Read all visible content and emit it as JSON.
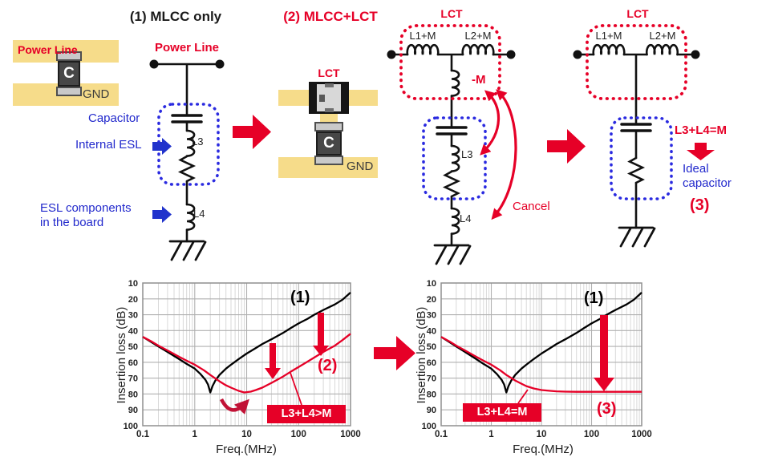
{
  "colors": {
    "red": "#e60027",
    "dark_red": "#c11236",
    "blue": "#2128cc",
    "yellow": "#f6dc8a",
    "curve_black": "#000000"
  },
  "sections": {
    "s1": {
      "title": "(1) MLCC only",
      "pcb": {
        "power_line": "Power Line",
        "cap": "C",
        "gnd": "GND"
      },
      "circuit": {
        "power_line": "Power Line",
        "l3": "L3",
        "l4": "L4"
      },
      "labels": {
        "capacitor": "Capacitor",
        "internal_esl": "Internal ESL",
        "esl_line1": "ESL components",
        "esl_line2": "in the board"
      }
    },
    "s2": {
      "title": "(2) MLCC+LCT",
      "pcb": {
        "lct": "LCT",
        "cap": "C",
        "gnd": "GND"
      },
      "circuit": {
        "lct": "LCT",
        "l1": "L1+M",
        "l2": "L2+M",
        "minus_m": "-M",
        "l3": "L3",
        "l4": "L4",
        "cancel": "Cancel"
      }
    },
    "s3": {
      "circuit": {
        "lct": "LCT",
        "l1": "L1+M",
        "l2": "L2+M"
      },
      "labels": {
        "condition": "L3+L4=M",
        "ideal_line1": "Ideal",
        "ideal_line2": "capacitor",
        "number": "(3)"
      }
    }
  },
  "chart_data": [
    {
      "type": "line",
      "title": "",
      "xlabel": "Freq.(MHz)",
      "ylabel": "Insertion loss (dB)",
      "xscale": "log",
      "xlim": [
        0.1,
        1000
      ],
      "ylim": [
        10,
        100
      ],
      "y_axis_direction": "loss increases downward (10 dB at top, 100 dB at bottom)",
      "x_ticks": [
        "0.1",
        "1",
        "10",
        "100",
        "1000"
      ],
      "y_ticks": [
        10,
        20,
        30,
        40,
        50,
        60,
        70,
        80,
        90,
        100
      ],
      "grid": true,
      "legend_position": "inline-labels",
      "series": [
        {
          "name": "(1)",
          "color": "#000000",
          "points": [
            [
              0.1,
              44
            ],
            [
              0.15,
              47.5
            ],
            [
              0.2,
              50
            ],
            [
              0.3,
              53.5
            ],
            [
              0.5,
              58
            ],
            [
              0.7,
              61
            ],
            [
              1,
              64
            ],
            [
              1.3,
              67.5
            ],
            [
              1.6,
              71
            ],
            [
              1.8,
              74
            ],
            [
              2,
              79
            ],
            [
              2.2,
              75
            ],
            [
              2.5,
              71.5
            ],
            [
              3,
              68
            ],
            [
              4,
              64
            ],
            [
              5,
              61.5
            ],
            [
              7,
              58
            ],
            [
              10,
              54.5
            ],
            [
              15,
              51
            ],
            [
              20,
              48.5
            ],
            [
              30,
              45.5
            ],
            [
              50,
              41.5
            ],
            [
              70,
              38.5
            ],
            [
              100,
              35.5
            ],
            [
              150,
              32.5
            ],
            [
              200,
              30
            ],
            [
              300,
              27
            ],
            [
              500,
              23.5
            ],
            [
              700,
              20.5
            ],
            [
              1000,
              16
            ]
          ]
        },
        {
          "name": "(2)",
          "color": "#e60027",
          "points": [
            [
              0.1,
              44
            ],
            [
              0.15,
              47
            ],
            [
              0.2,
              49.5
            ],
            [
              0.3,
              52.5
            ],
            [
              0.5,
              56.5
            ],
            [
              0.7,
              59
            ],
            [
              1,
              61.5
            ],
            [
              1.5,
              65
            ],
            [
              2,
              68
            ],
            [
              3,
              72
            ],
            [
              4,
              74.5
            ],
            [
              5,
              76
            ],
            [
              7,
              78
            ],
            [
              9,
              79
            ],
            [
              12,
              78.5
            ],
            [
              15,
              77.5
            ],
            [
              20,
              76
            ],
            [
              30,
              73
            ],
            [
              50,
              69
            ],
            [
              70,
              66
            ],
            [
              100,
              63
            ],
            [
              150,
              59.5
            ],
            [
              200,
              57
            ],
            [
              300,
              53.5
            ],
            [
              500,
              49.5
            ],
            [
              700,
              46
            ],
            [
              1000,
              42
            ]
          ]
        }
      ],
      "annotations": {
        "box_label": "L3+L4>M"
      }
    },
    {
      "type": "line",
      "title": "",
      "xlabel": "Freq.(MHz)",
      "ylabel": "Insertion loss (dB)",
      "xscale": "log",
      "xlim": [
        0.1,
        1000
      ],
      "ylim": [
        10,
        100
      ],
      "y_axis_direction": "loss increases downward (10 dB at top, 100 dB at bottom)",
      "x_ticks": [
        "0.1",
        "1",
        "10",
        "100",
        "1000"
      ],
      "y_ticks": [
        10,
        20,
        30,
        40,
        50,
        60,
        70,
        80,
        90,
        100
      ],
      "grid": true,
      "legend_position": "inline-labels",
      "series": [
        {
          "name": "(1)",
          "color": "#000000",
          "points": [
            [
              0.1,
              44
            ],
            [
              0.15,
              47.5
            ],
            [
              0.2,
              50
            ],
            [
              0.3,
              53.5
            ],
            [
              0.5,
              58
            ],
            [
              0.7,
              61
            ],
            [
              1,
              64
            ],
            [
              1.3,
              67.5
            ],
            [
              1.6,
              71
            ],
            [
              1.8,
              74
            ],
            [
              2,
              79
            ],
            [
              2.2,
              75
            ],
            [
              2.5,
              71.5
            ],
            [
              3,
              68
            ],
            [
              4,
              64
            ],
            [
              5,
              61.5
            ],
            [
              7,
              58
            ],
            [
              10,
              54.5
            ],
            [
              15,
              51
            ],
            [
              20,
              48.5
            ],
            [
              30,
              45.5
            ],
            [
              50,
              41.5
            ],
            [
              70,
              38.5
            ],
            [
              100,
              35.5
            ],
            [
              150,
              32.5
            ],
            [
              200,
              30
            ],
            [
              300,
              27
            ],
            [
              500,
              23.5
            ],
            [
              700,
              20.5
            ],
            [
              1000,
              16
            ]
          ]
        },
        {
          "name": "(3)",
          "color": "#e60027",
          "points": [
            [
              0.1,
              44
            ],
            [
              0.15,
              47
            ],
            [
              0.2,
              49.5
            ],
            [
              0.3,
              52.5
            ],
            [
              0.5,
              56.5
            ],
            [
              0.7,
              59
            ],
            [
              1,
              61.5
            ],
            [
              1.5,
              65
            ],
            [
              2,
              68
            ],
            [
              3,
              71.5
            ],
            [
              4,
              73.5
            ],
            [
              5,
              75
            ],
            [
              7,
              76.5
            ],
            [
              10,
              77.5
            ],
            [
              15,
              78
            ],
            [
              20,
              78.3
            ],
            [
              30,
              78.5
            ],
            [
              50,
              78.6
            ],
            [
              100,
              78.6
            ],
            [
              200,
              78.6
            ],
            [
              300,
              78.6
            ],
            [
              500,
              78.6
            ],
            [
              700,
              78.6
            ],
            [
              1000,
              78.6
            ]
          ]
        }
      ],
      "annotations": {
        "box_label": "L3+L4=M"
      }
    }
  ]
}
